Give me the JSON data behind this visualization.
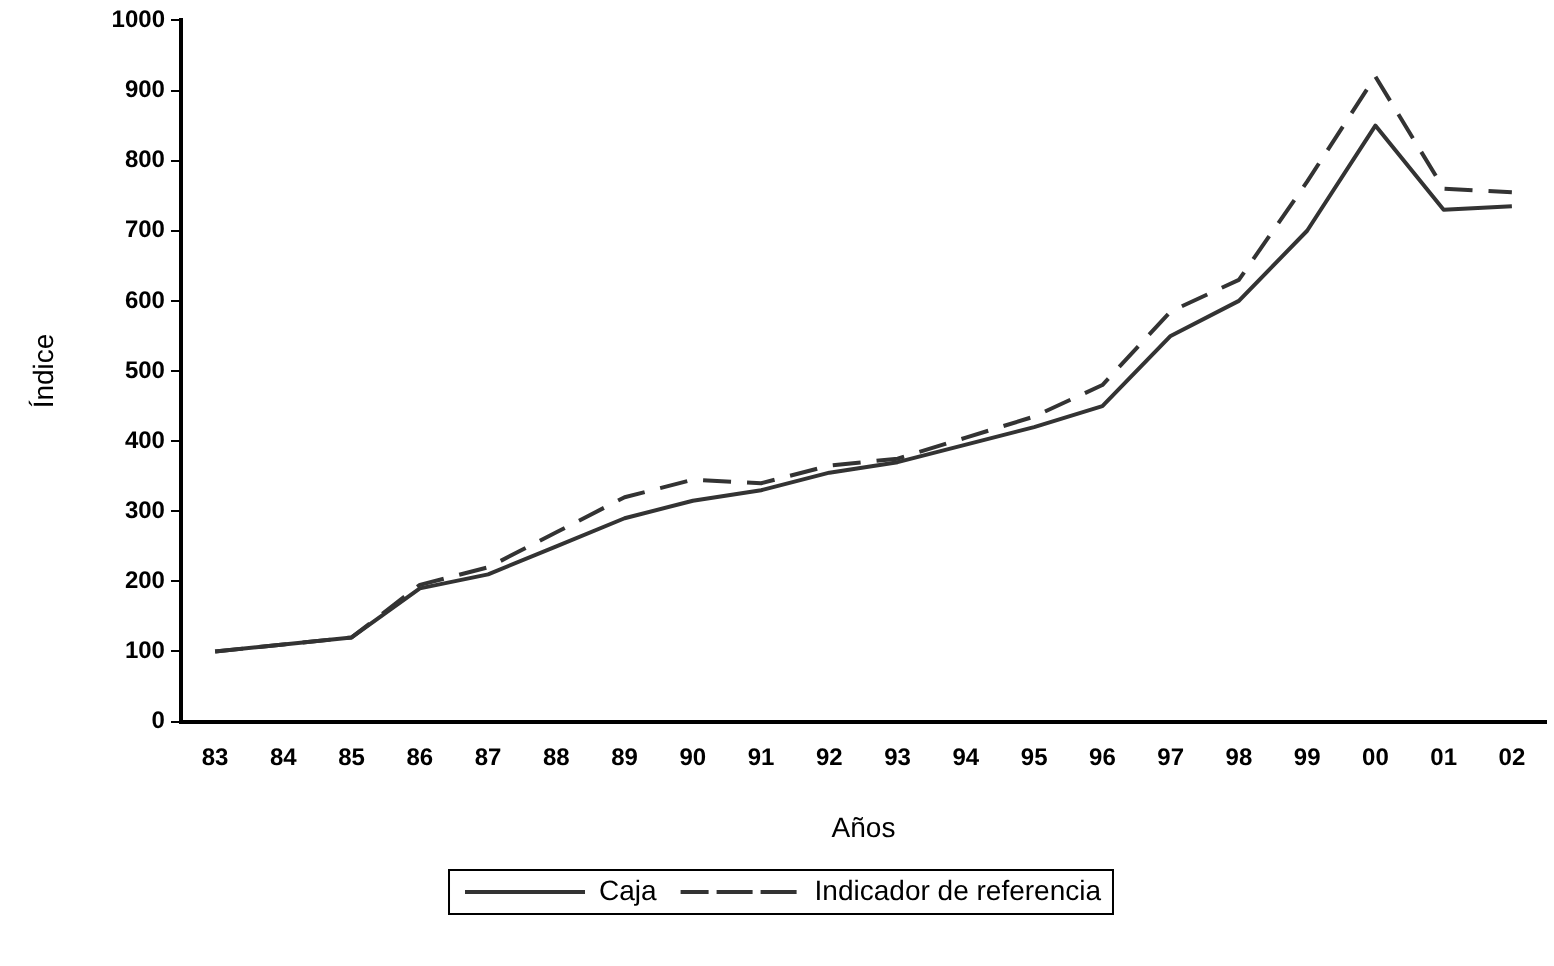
{
  "chart_data": {
    "type": "line",
    "xlabel": "Años",
    "ylabel": "Índice",
    "categories": [
      "83",
      "84",
      "85",
      "86",
      "87",
      "88",
      "89",
      "90",
      "91",
      "92",
      "93",
      "94",
      "95",
      "96",
      "97",
      "98",
      "99",
      "00",
      "01",
      "02"
    ],
    "series": [
      {
        "name": "Caja",
        "color": "#333333",
        "line_style": "solid",
        "values": [
          100,
          110,
          120,
          190,
          210,
          250,
          290,
          315,
          330,
          355,
          370,
          395,
          420,
          450,
          550,
          600,
          700,
          850,
          730,
          735
        ]
      },
      {
        "name": "Indicador de referencia",
        "color": "#333333",
        "line_style": "dashed",
        "values": [
          100,
          110,
          120,
          195,
          220,
          270,
          320,
          345,
          340,
          365,
          375,
          405,
          435,
          480,
          585,
          630,
          770,
          920,
          760,
          755
        ]
      }
    ],
    "ylim": [
      0,
      1000
    ],
    "yticks": [
      0,
      100,
      200,
      300,
      400,
      500,
      600,
      700,
      800,
      900,
      1000
    ],
    "grid": false,
    "legend": "bottom",
    "marker": "none"
  }
}
